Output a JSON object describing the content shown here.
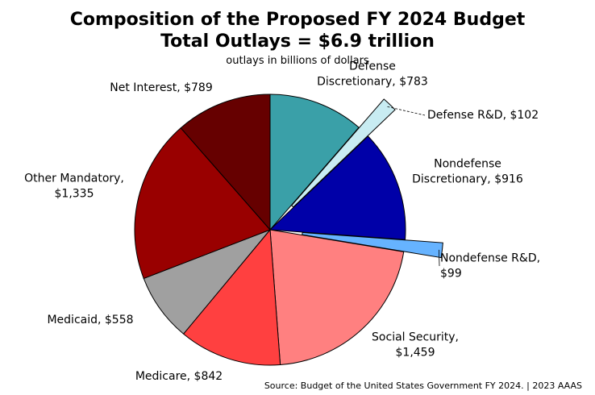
{
  "chart_data": {
    "type": "pie",
    "title": "Composition of the Proposed FY 2024 Budget",
    "subtitle": "Total Outlays = $6.9 trillion",
    "unit_note": "outlays in billions of dollars",
    "source": "Source: Budget of the United States Government FY 2024. | 2023 AAAS",
    "slices": [
      {
        "label_lines": [
          "Defense",
          "Discretionary, $783"
        ],
        "value": 783,
        "color": "#3aa0a8",
        "exploded": false
      },
      {
        "label_lines": [
          "Defense R&D, $102"
        ],
        "value": 102,
        "color": "#c8ecf2",
        "exploded": true
      },
      {
        "label_lines": [
          "Nondefense",
          "Discretionary, $916"
        ],
        "value": 916,
        "color": "#0000a8",
        "exploded": false
      },
      {
        "label_lines": [
          "Nondefense R&D,",
          "$99"
        ],
        "value": 99,
        "color": "#66b3ff",
        "exploded": true
      },
      {
        "label_lines": [
          "Social Security,",
          "$1,459"
        ],
        "value": 1459,
        "color": "#ff8080",
        "exploded": false
      },
      {
        "label_lines": [
          "Medicare, $842"
        ],
        "value": 842,
        "color": "#ff4040",
        "exploded": false
      },
      {
        "label_lines": [
          "Medicaid, $558"
        ],
        "value": 558,
        "color": "#a0a0a0",
        "exploded": false
      },
      {
        "label_lines": [
          "Other Mandatory,",
          "$1,335"
        ],
        "value": 1335,
        "color": "#990000",
        "exploded": false
      },
      {
        "label_lines": [
          "Net Interest, $789"
        ],
        "value": 789,
        "color": "#660000",
        "exploded": false
      }
    ]
  }
}
